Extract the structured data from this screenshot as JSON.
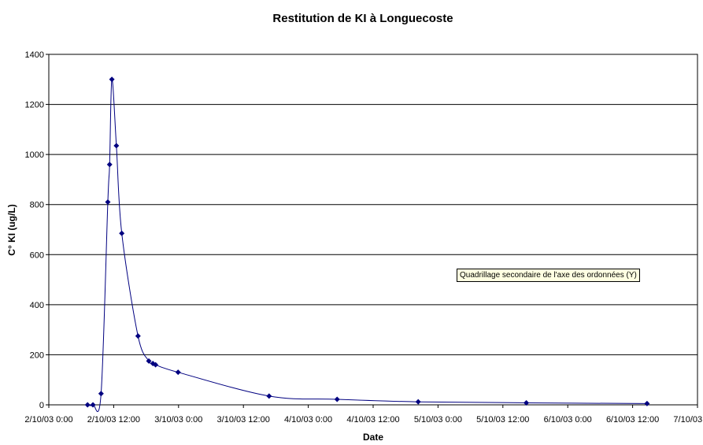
{
  "chart_data": {
    "type": "line",
    "title": "Restitution de KI à Longuecoste",
    "xlabel": "Date",
    "ylabel": "C° KI (ug/L)",
    "ylim": [
      0,
      1400
    ],
    "yticks": [
      0,
      200,
      400,
      600,
      800,
      1000,
      1200,
      1400
    ],
    "xlim": [
      "2003-10-02T00:00",
      "2003-10-07T00:00"
    ],
    "xtick_labels": [
      "2/10/03 0:00",
      "2/10/03 12:00",
      "3/10/03 0:00",
      "3/10/03 12:00",
      "4/10/03 0:00",
      "4/10/03 12:00",
      "5/10/03 0:00",
      "5/10/03 12:00",
      "6/10/03 0:00",
      "6/10/03 12:00",
      "7/10/03 0:00"
    ],
    "grid": "horizontal",
    "line_color": "#000080",
    "series": [
      {
        "points": [
          {
            "x": "2003-10-02T07:10",
            "y": 0
          },
          {
            "x": "2003-10-02T08:10",
            "y": 0
          },
          {
            "x": "2003-10-02T09:40",
            "y": 45
          },
          {
            "x": "2003-10-02T10:55",
            "y": 810
          },
          {
            "x": "2003-10-02T11:15",
            "y": 960
          },
          {
            "x": "2003-10-02T11:40",
            "y": 1300
          },
          {
            "x": "2003-10-02T12:30",
            "y": 1035
          },
          {
            "x": "2003-10-02T13:30",
            "y": 685
          },
          {
            "x": "2003-10-02T16:30",
            "y": 275
          },
          {
            "x": "2003-10-02T18:30",
            "y": 175
          },
          {
            "x": "2003-10-02T19:15",
            "y": 165
          },
          {
            "x": "2003-10-02T19:45",
            "y": 160
          },
          {
            "x": "2003-10-02T23:55",
            "y": 130
          },
          {
            "x": "2003-10-03T16:45",
            "y": 35
          },
          {
            "x": "2003-10-04T05:20",
            "y": 22
          },
          {
            "x": "2003-10-04T20:20",
            "y": 12
          },
          {
            "x": "2003-10-05T16:20",
            "y": 8
          },
          {
            "x": "2003-10-06T14:40",
            "y": 5
          }
        ]
      }
    ]
  },
  "tooltip": "Quadrillage secondaire de l'axe des ordonnées (Y)"
}
